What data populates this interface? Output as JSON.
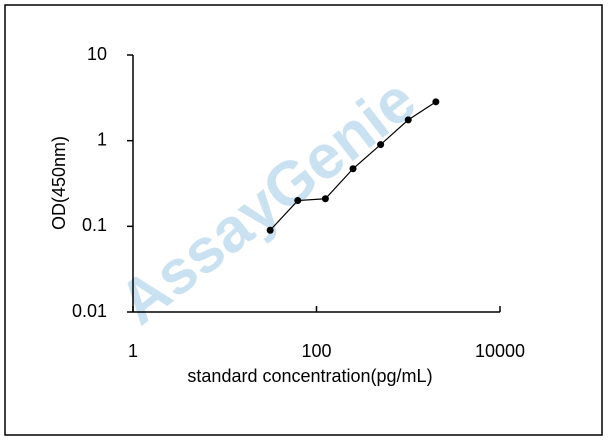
{
  "chart_data": {
    "type": "line",
    "xlabel": "standard concentration(pg/mL)",
    "ylabel": "OD(450nm)",
    "watermark": "AssayGenie",
    "x": [
      31.25,
      62.5,
      125,
      250,
      500,
      1000,
      2000
    ],
    "series": [
      {
        "color": "#000000",
        "values": [
          0.09,
          0.2,
          0.21,
          0.47,
          0.9,
          1.75,
          2.84
        ]
      }
    ],
    "xlog": true,
    "ylog": true,
    "xlim": [
      1,
      10000
    ],
    "xticks": [
      1,
      100,
      10000
    ],
    "ylim": [
      0.01,
      10
    ],
    "yticks": [
      0.01,
      0.1,
      1,
      10
    ]
  }
}
